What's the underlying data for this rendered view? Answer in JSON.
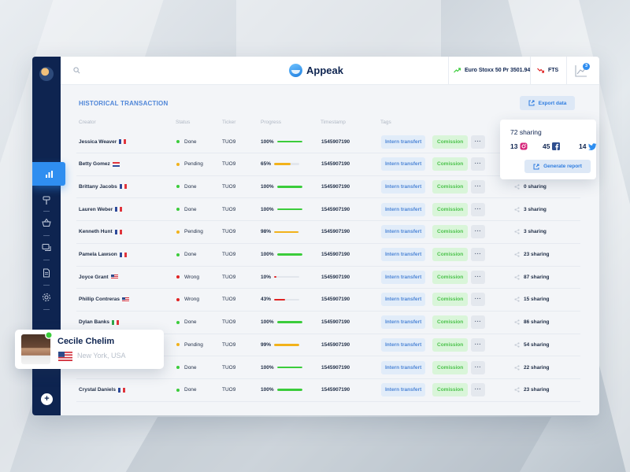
{
  "app": {
    "name": "Appeak"
  },
  "topbar": {
    "ticker1": "Euro Stoxx 50 Pr 3501.94",
    "ticker2": "FTS",
    "chart_badge": "3"
  },
  "page": {
    "title": "HISTORICAL TRANSACTION",
    "export_label": "Export data"
  },
  "table": {
    "headers": [
      "Creator",
      "Status",
      "Ticker",
      "Progress",
      "Timestamp",
      "Tags"
    ],
    "tag_intern": "Intern transfert",
    "tag_commission": "Comission",
    "more_label": "···",
    "rows": [
      {
        "name": "Jessica Weaver",
        "flag": "fr",
        "status": "Done",
        "status_color": "#3bcc3b",
        "ticker": "TUO9",
        "progress": 100,
        "progress_label": "100%",
        "bar_color": "#3bcc3b",
        "timestamp": "1545907190",
        "sharing": ""
      },
      {
        "name": "Betty Gomez",
        "flag": "nl",
        "status": "Pending",
        "status_color": "#f2b21b",
        "ticker": "TUO9",
        "progress": 65,
        "progress_label": "65%",
        "bar_color": "#f2b21b",
        "timestamp": "1545907190",
        "sharing": ""
      },
      {
        "name": "Brittany Jacobs",
        "flag": "fr",
        "status": "Done",
        "status_color": "#3bcc3b",
        "ticker": "TUO9",
        "progress": 100,
        "progress_label": "100%",
        "bar_color": "#3bcc3b",
        "timestamp": "1545907190",
        "sharing": "0 sharing"
      },
      {
        "name": "Lauren Weber",
        "flag": "fr",
        "status": "Done",
        "status_color": "#3bcc3b",
        "ticker": "TUO9",
        "progress": 100,
        "progress_label": "100%",
        "bar_color": "#3bcc3b",
        "timestamp": "1545907190",
        "sharing": "3 sharing"
      },
      {
        "name": "Kenneth Hunt",
        "flag": "fr",
        "status": "Pending",
        "status_color": "#f2b21b",
        "ticker": "TUO9",
        "progress": 98,
        "progress_label": "98%",
        "bar_color": "#f2b21b",
        "timestamp": "1545907190",
        "sharing": "3 sharing"
      },
      {
        "name": "Pamela Lawson",
        "flag": "fr",
        "status": "Done",
        "status_color": "#3bcc3b",
        "ticker": "TUO9",
        "progress": 100,
        "progress_label": "100%",
        "bar_color": "#3bcc3b",
        "timestamp": "1545907190",
        "sharing": "23 sharing"
      },
      {
        "name": "Joyce Grant",
        "flag": "us",
        "status": "Wrong",
        "status_color": "#e02424",
        "ticker": "TUO9",
        "progress": 10,
        "progress_label": "10%",
        "bar_color": "#e02424",
        "timestamp": "1545907190",
        "sharing": "87 sharing"
      },
      {
        "name": "Phillip Contreras",
        "flag": "us",
        "status": "Wrong",
        "status_color": "#e02424",
        "ticker": "TUO9",
        "progress": 43,
        "progress_label": "43%",
        "bar_color": "#e02424",
        "timestamp": "1545907190",
        "sharing": "15 sharing"
      },
      {
        "name": "Dylan Banks",
        "flag": "it",
        "status": "Done",
        "status_color": "#3bcc3b",
        "ticker": "TUO9",
        "progress": 100,
        "progress_label": "100%",
        "bar_color": "#3bcc3b",
        "timestamp": "1545907190",
        "sharing": "86 sharing"
      },
      {
        "name": "",
        "flag": "",
        "status": "Pending",
        "status_color": "#f2b21b",
        "ticker": "TUO9",
        "progress": 99,
        "progress_label": "99%",
        "bar_color": "#f2b21b",
        "timestamp": "1545907190",
        "sharing": "54 sharing"
      },
      {
        "name": "",
        "flag": "",
        "status": "Done",
        "status_color": "#3bcc3b",
        "ticker": "TUO9",
        "progress": 100,
        "progress_label": "100%",
        "bar_color": "#3bcc3b",
        "timestamp": "1545907190",
        "sharing": "22 sharing"
      },
      {
        "name": "Crystal Daniels",
        "flag": "fr",
        "status": "Done",
        "status_color": "#3bcc3b",
        "ticker": "TUO9",
        "progress": 100,
        "progress_label": "100%",
        "bar_color": "#3bcc3b",
        "timestamp": "1545907190",
        "sharing": "23 sharing"
      }
    ]
  },
  "share_popup": {
    "title": "72 sharing",
    "instagram": "13",
    "facebook": "45",
    "twitter": "14",
    "generate_label": "Generate report"
  },
  "profile": {
    "name": "Cecile Chelim",
    "location": "New York, USA"
  },
  "colors": {
    "sidebar": "#0e2450",
    "accent": "#2f8ef0",
    "done": "#3bcc3b",
    "pending": "#f2b21b",
    "wrong": "#e02424"
  }
}
